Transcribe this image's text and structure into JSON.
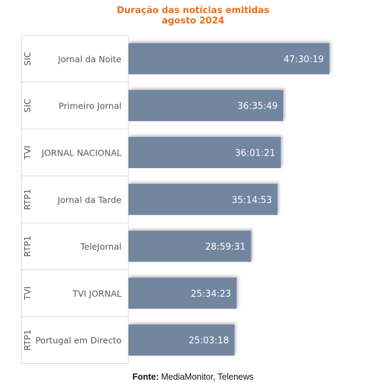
{
  "chart_data": {
    "type": "bar",
    "orientation": "horizontal",
    "title": "Duração das notícias emitidas",
    "subtitle": "agosto 2024",
    "categories": [
      "Jornal da Noite",
      "Primeiro Jornal",
      "JORNAL NACIONAL",
      "Jornal da Tarde",
      "TeleJornal",
      "TVI JORNAL",
      "Portugal em Directo"
    ],
    "channels": [
      "SIC",
      "SIC",
      "TVI",
      "RTP1",
      "RTP1",
      "TVI",
      "RTP1"
    ],
    "series": [
      {
        "values_hhmmss": [
          "47:30:19",
          "36:35:49",
          "36:01:21",
          "35:14:53",
          "28:59:31",
          "25:34:23",
          "25:03:18"
        ]
      }
    ],
    "bar_color": "#7286a0",
    "grid": false,
    "legend": "none"
  },
  "title": {
    "line1": "Duração das notícias emitidas",
    "line2": "agosto 2024"
  },
  "source": {
    "label": "Fonte:",
    "text": "MediaMonitor, Telenews"
  },
  "colors": {
    "title": "#e8701f",
    "bar": "#7286a0",
    "bar_text": "#ffffff",
    "axis_text": "#595959",
    "lines": "#d9d9d9"
  }
}
